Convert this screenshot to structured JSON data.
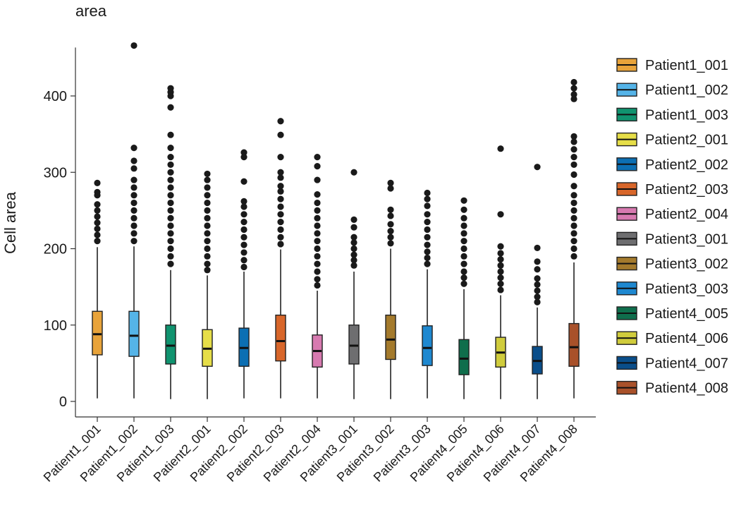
{
  "chart_data": {
    "type": "box",
    "title": "area",
    "xlabel": "",
    "ylabel": "Cell area",
    "ylim": [
      -20,
      480
    ],
    "yticks": [
      0,
      100,
      200,
      300,
      400
    ],
    "legend_position": "right",
    "groups": [
      {
        "name": "Patient1_001",
        "color": "#E8A33A",
        "whisker_low": 4,
        "q1": 61,
        "median": 88,
        "q3": 118,
        "whisker_high": 202,
        "outliers": [
          210,
          218,
          226,
          234,
          242,
          250,
          258,
          270,
          274,
          286
        ]
      },
      {
        "name": "Patient1_002",
        "color": "#55B4E8",
        "whisker_low": 4,
        "q1": 59,
        "median": 86,
        "q3": 118,
        "whisker_high": 203,
        "outliers": [
          210,
          220,
          230,
          240,
          250,
          260,
          270,
          280,
          290,
          305,
          315,
          332,
          466
        ]
      },
      {
        "name": "Patient1_003",
        "color": "#10936F",
        "whisker_low": 3,
        "q1": 49,
        "median": 73,
        "q3": 100,
        "whisker_high": 172,
        "outliers": [
          180,
          190,
          200,
          210,
          220,
          230,
          240,
          250,
          260,
          270,
          280,
          290,
          300,
          310,
          320,
          332,
          349,
          385,
          400,
          405,
          410
        ]
      },
      {
        "name": "Patient2_001",
        "color": "#E6DE48",
        "whisker_low": 3,
        "q1": 46,
        "median": 69,
        "q3": 94,
        "whisker_high": 165,
        "outliers": [
          172,
          180,
          190,
          200,
          210,
          220,
          230,
          240,
          250,
          260,
          270,
          280,
          290,
          298
        ]
      },
      {
        "name": "Patient2_002",
        "color": "#0C6FB3",
        "whisker_low": 4,
        "q1": 46,
        "median": 70,
        "q3": 96,
        "whisker_high": 170,
        "outliers": [
          176,
          185,
          195,
          205,
          215,
          225,
          235,
          245,
          255,
          262,
          288,
          320,
          326
        ]
      },
      {
        "name": "Patient2_003",
        "color": "#D8662A",
        "whisker_low": 4,
        "q1": 53,
        "median": 79,
        "q3": 113,
        "whisker_high": 199,
        "outliers": [
          206,
          215,
          225,
          235,
          245,
          255,
          265,
          275,
          282,
          293,
          300,
          320,
          349,
          367
        ]
      },
      {
        "name": "Patient2_004",
        "color": "#D77AB0",
        "whisker_low": 4,
        "q1": 45,
        "median": 66,
        "q3": 87,
        "whisker_high": 145,
        "outliers": [
          152,
          160,
          170,
          180,
          190,
          200,
          210,
          220,
          230,
          240,
          250,
          260,
          271,
          290,
          308,
          320
        ]
      },
      {
        "name": "Patient3_001",
        "color": "#6E6E70",
        "whisker_low": 3,
        "q1": 49,
        "median": 73,
        "q3": 100,
        "whisker_high": 170,
        "outliers": [
          178,
          185,
          192,
          200,
          208,
          215,
          228,
          238,
          300
        ]
      },
      {
        "name": "Patient3_002",
        "color": "#A47A2C",
        "whisker_low": 3,
        "q1": 55,
        "median": 81,
        "q3": 113,
        "whisker_high": 200,
        "outliers": [
          207,
          215,
          223,
          232,
          243,
          251,
          279,
          286
        ]
      },
      {
        "name": "Patient3_003",
        "color": "#1E88D0",
        "whisker_low": 4,
        "q1": 47,
        "median": 70,
        "q3": 99,
        "whisker_high": 173,
        "outliers": [
          180,
          188,
          196,
          205,
          215,
          225,
          235,
          245,
          256,
          265,
          273
        ]
      },
      {
        "name": "Patient4_005",
        "color": "#0F6E4C",
        "whisker_low": 3,
        "q1": 35,
        "median": 56,
        "q3": 81,
        "whisker_high": 147,
        "outliers": [
          154,
          162,
          170,
          180,
          190,
          200,
          210,
          220,
          230,
          240,
          251,
          263
        ]
      },
      {
        "name": "Patient4_006",
        "color": "#D0CC3C",
        "whisker_low": 3,
        "q1": 45,
        "median": 64,
        "q3": 84,
        "whisker_high": 139,
        "outliers": [
          146,
          154,
          162,
          170,
          178,
          186,
          194,
          203,
          245,
          331
        ]
      },
      {
        "name": "Patient4_007",
        "color": "#0A4E8A",
        "whisker_low": 3,
        "q1": 36,
        "median": 53,
        "q3": 72,
        "whisker_high": 123,
        "outliers": [
          130,
          137,
          145,
          153,
          161,
          173,
          183,
          201,
          307
        ]
      },
      {
        "name": "Patient4_008",
        "color": "#A9512A",
        "whisker_low": 4,
        "q1": 46,
        "median": 71,
        "q3": 102,
        "whisker_high": 182,
        "outliers": [
          190,
          200,
          210,
          220,
          230,
          240,
          250,
          260,
          270,
          282,
          297,
          310,
          320,
          330,
          340,
          347,
          396,
          402,
          410,
          418
        ]
      }
    ]
  }
}
